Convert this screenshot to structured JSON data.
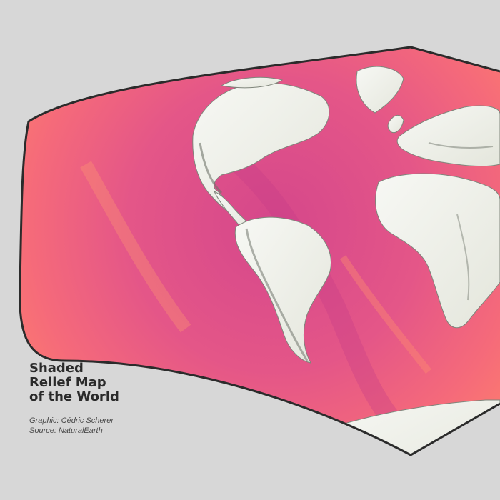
{
  "map": {
    "title_lines": [
      "Shaded",
      "Relief Map",
      "of the World"
    ],
    "credits": {
      "graphic": "Graphic: Cédric Scherer",
      "source": "Source: NaturalEarth"
    },
    "colors": {
      "background": "#d7d7d7",
      "ocean_shallow": "#ff7e6b",
      "ocean_deep": "#d94a8c",
      "land": "#f1f2ee",
      "land_shade": "#8a8f86",
      "outline": "#2b2b2b"
    }
  }
}
